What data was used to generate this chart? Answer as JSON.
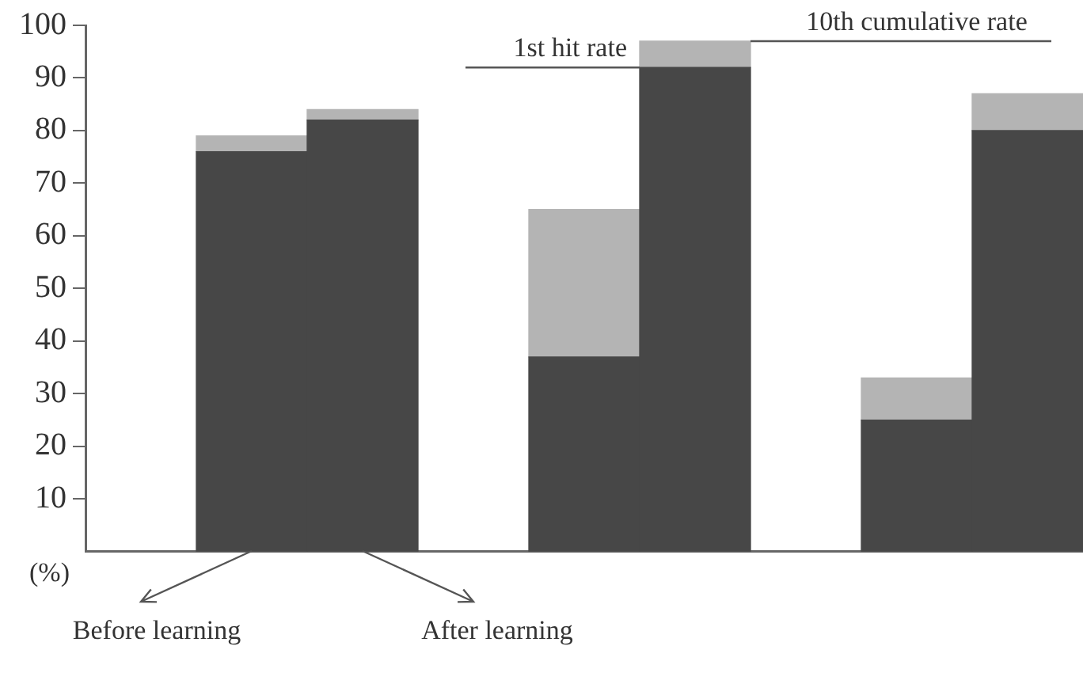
{
  "chart_data": {
    "type": "bar",
    "stacked": true,
    "ylabel": "(%)",
    "categories": [
      null,
      null,
      null,
      null,
      null,
      null,
      null,
      null,
      null
    ],
    "series": [
      {
        "color": "#474747",
        "values": [
          null,
          76,
          82,
          null,
          37,
          92,
          null,
          25,
          80
        ]
      },
      {
        "color": "#b4b4b4",
        "values": [
          null,
          3,
          2,
          null,
          28,
          5,
          null,
          8,
          7
        ]
      }
    ],
    "ylim": [
      0,
      100
    ],
    "yticks": [
      10,
      20,
      30,
      40,
      50,
      60,
      70,
      80,
      90,
      100
    ],
    "grid": false,
    "legend": false,
    "annotations": [
      "1st hit rate",
      "10th cumulative rate",
      "Before learning",
      "After learning"
    ]
  }
}
